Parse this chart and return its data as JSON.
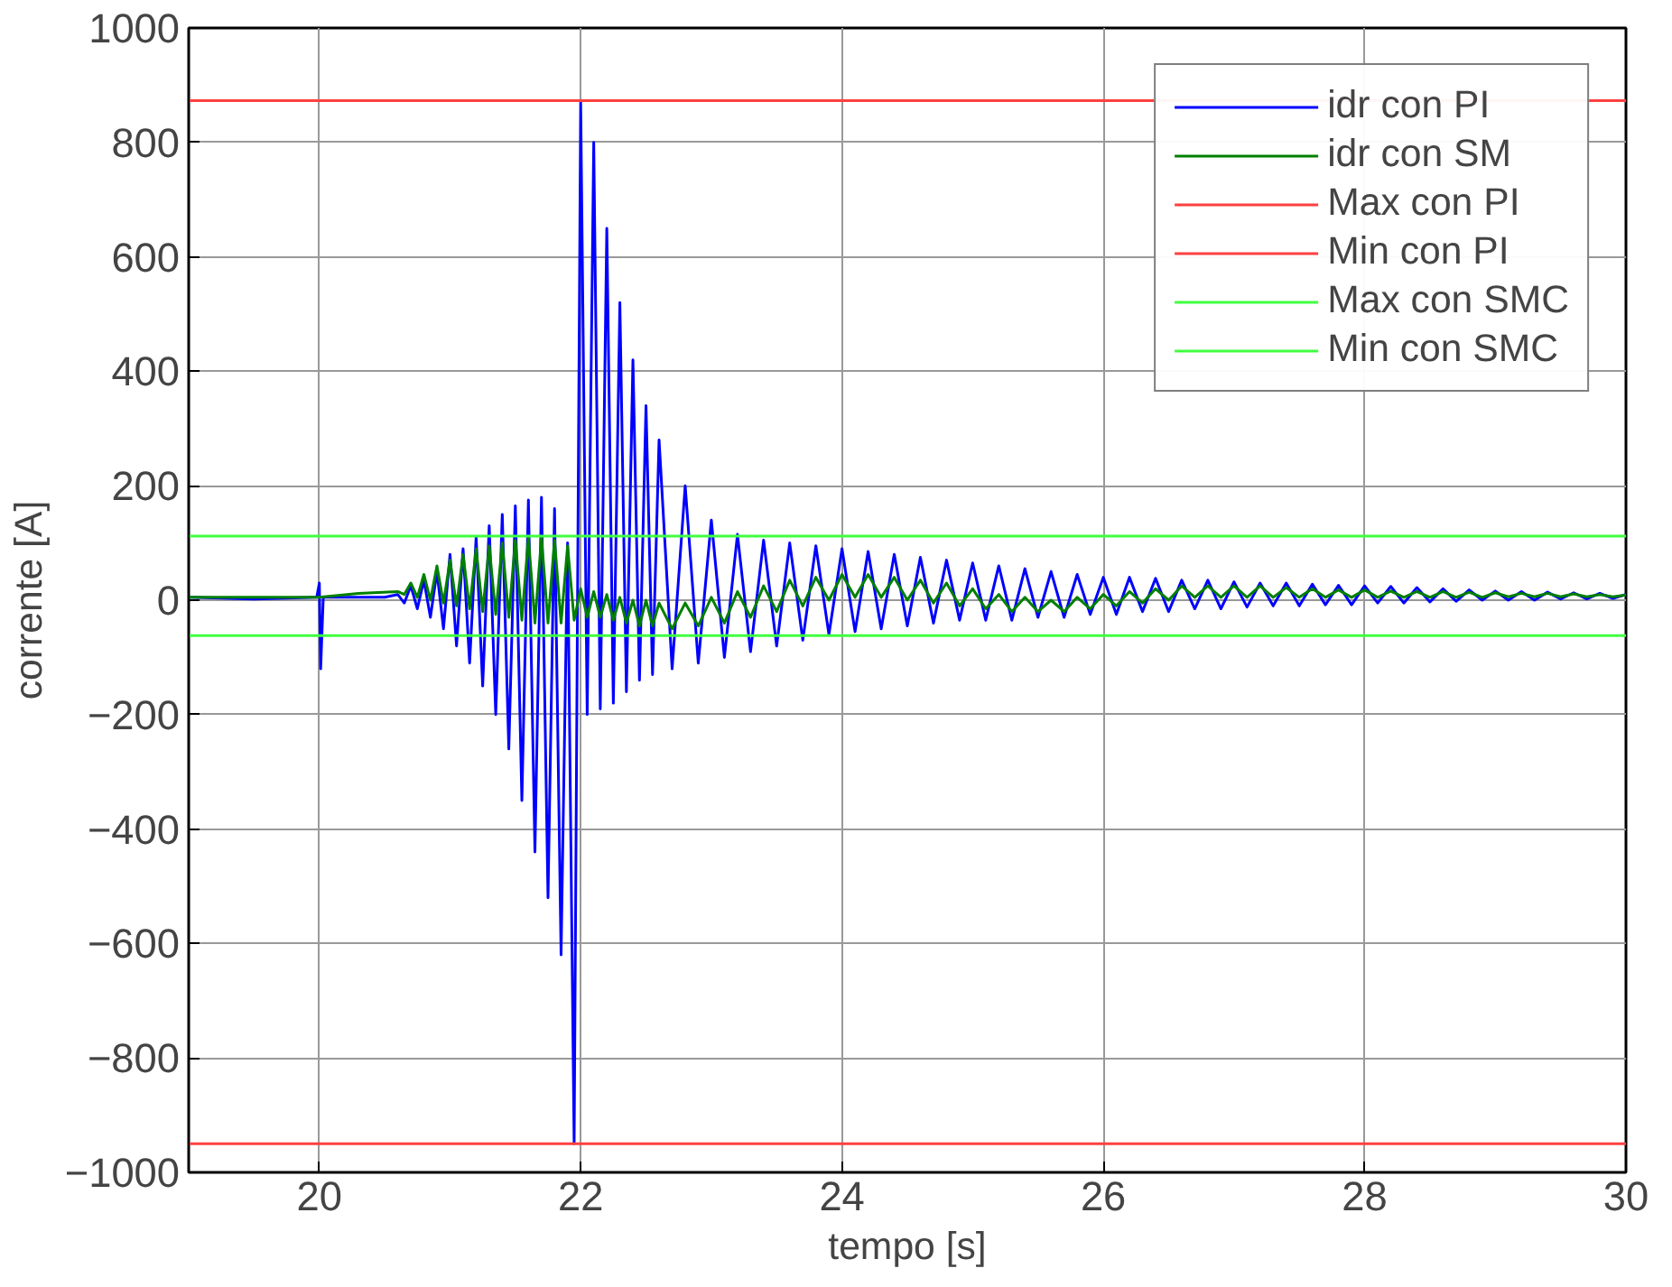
{
  "chart_data": {
    "type": "line",
    "xlabel": "tempo [s]",
    "ylabel": "corrente [A]",
    "xlim": [
      19,
      30
    ],
    "xticks": [
      20,
      22,
      24,
      26,
      28,
      30
    ],
    "ylim": [
      -1000,
      1000
    ],
    "yticks": [
      -1000,
      -800,
      -600,
      -400,
      -200,
      0,
      200,
      400,
      600,
      800,
      1000
    ],
    "grid": true,
    "legend": "top right",
    "marker": "none",
    "line_style": "solid",
    "series": [
      {
        "name": "idr con PI",
        "color": "#0000ff",
        "x": [
          19.0,
          19.5,
          19.98,
          20.0,
          20.01,
          20.03,
          20.5,
          20.6,
          20.65,
          20.7,
          20.75,
          20.8,
          20.85,
          20.9,
          20.95,
          21.0,
          21.05,
          21.1,
          21.15,
          21.2,
          21.25,
          21.3,
          21.35,
          21.4,
          21.45,
          21.5,
          21.55,
          21.6,
          21.65,
          21.7,
          21.75,
          21.8,
          21.85,
          21.9,
          21.95,
          22.0,
          22.05,
          22.1,
          22.15,
          22.2,
          22.25,
          22.3,
          22.35,
          22.4,
          22.45,
          22.5,
          22.55,
          22.6,
          22.7,
          22.8,
          22.9,
          23.0,
          23.1,
          23.2,
          23.3,
          23.4,
          23.5,
          23.6,
          23.7,
          23.8,
          23.9,
          24.0,
          24.1,
          24.2,
          24.3,
          24.4,
          24.5,
          24.6,
          24.7,
          24.8,
          24.9,
          25.0,
          25.1,
          25.2,
          25.3,
          25.4,
          25.5,
          25.6,
          25.7,
          25.8,
          25.9,
          26.0,
          26.1,
          26.2,
          26.3,
          26.4,
          26.5,
          26.6,
          26.7,
          26.8,
          26.9,
          27.0,
          27.1,
          27.2,
          27.3,
          27.4,
          27.5,
          27.6,
          27.7,
          27.8,
          27.9,
          28.0,
          28.1,
          28.2,
          28.3,
          28.4,
          28.5,
          28.6,
          28.7,
          28.8,
          28.9,
          29.0,
          29.1,
          29.2,
          29.3,
          29.4,
          29.5,
          29.6,
          29.7,
          29.8,
          29.9,
          30.0
        ],
        "values": [
          5,
          2,
          5,
          30,
          -120,
          5,
          5,
          10,
          -5,
          25,
          -15,
          35,
          -30,
          50,
          -50,
          80,
          -80,
          90,
          -110,
          110,
          -150,
          130,
          -200,
          150,
          -260,
          165,
          -350,
          175,
          -440,
          180,
          -520,
          160,
          -620,
          100,
          -950,
          870,
          -200,
          800,
          -190,
          650,
          -180,
          520,
          -160,
          420,
          -140,
          340,
          -130,
          280,
          -120,
          200,
          -110,
          140,
          -100,
          115,
          -90,
          105,
          -80,
          100,
          -70,
          95,
          -60,
          90,
          -55,
          85,
          -50,
          80,
          -45,
          75,
          -40,
          70,
          -35,
          65,
          -35,
          60,
          -35,
          55,
          -30,
          50,
          -30,
          45,
          -25,
          40,
          -25,
          40,
          -20,
          38,
          -20,
          35,
          -15,
          35,
          -15,
          32,
          -12,
          30,
          -10,
          30,
          -10,
          28,
          -8,
          26,
          -8,
          25,
          -5,
          24,
          -5,
          22,
          -3,
          20,
          -2,
          18,
          0,
          16,
          0,
          15,
          0,
          14,
          2,
          13,
          2,
          12,
          3,
          10
        ]
      },
      {
        "name": "idr con SM",
        "color": "#008000",
        "x": [
          19.0,
          20.0,
          20.3,
          20.6,
          20.65,
          20.7,
          20.75,
          20.8,
          20.85,
          20.9,
          20.95,
          21.0,
          21.05,
          21.1,
          21.15,
          21.2,
          21.25,
          21.3,
          21.35,
          21.4,
          21.45,
          21.5,
          21.55,
          21.6,
          21.65,
          21.7,
          21.75,
          21.8,
          21.85,
          21.9,
          21.95,
          22.0,
          22.05,
          22.1,
          22.15,
          22.2,
          22.25,
          22.3,
          22.35,
          22.4,
          22.45,
          22.5,
          22.55,
          22.6,
          22.7,
          22.8,
          22.9,
          23.0,
          23.1,
          23.2,
          23.3,
          23.4,
          23.5,
          23.6,
          23.7,
          23.8,
          23.9,
          24.0,
          24.1,
          24.2,
          24.3,
          24.4,
          24.5,
          24.6,
          24.7,
          24.8,
          24.9,
          25.0,
          25.1,
          25.2,
          25.3,
          25.4,
          25.5,
          25.6,
          25.7,
          25.8,
          25.9,
          26.0,
          26.1,
          26.2,
          26.3,
          26.4,
          26.5,
          26.6,
          26.7,
          26.8,
          26.9,
          27.0,
          27.1,
          27.2,
          27.3,
          27.4,
          27.5,
          27.6,
          27.7,
          27.8,
          27.9,
          28.0,
          28.1,
          28.2,
          28.3,
          28.4,
          28.5,
          28.6,
          28.7,
          28.8,
          28.9,
          29.0,
          29.1,
          29.2,
          29.3,
          29.4,
          29.5,
          29.6,
          29.7,
          29.8,
          29.9,
          30.0
        ],
        "values": [
          5,
          5,
          12,
          15,
          10,
          30,
          5,
          45,
          0,
          60,
          -5,
          70,
          -10,
          80,
          -15,
          90,
          -20,
          95,
          -25,
          100,
          -30,
          105,
          -35,
          110,
          -40,
          110,
          -40,
          105,
          -40,
          95,
          -35,
          20,
          -30,
          15,
          -30,
          10,
          -35,
          5,
          -40,
          0,
          -45,
          0,
          -45,
          -5,
          -50,
          -5,
          -45,
          5,
          -40,
          15,
          -30,
          25,
          -20,
          35,
          -10,
          40,
          0,
          45,
          5,
          45,
          5,
          40,
          0,
          35,
          -5,
          30,
          -10,
          20,
          -15,
          10,
          -20,
          5,
          -20,
          0,
          -20,
          5,
          -15,
          10,
          -10,
          15,
          -5,
          20,
          0,
          25,
          5,
          25,
          5,
          25,
          5,
          25,
          5,
          22,
          5,
          20,
          5,
          18,
          5,
          18,
          5,
          16,
          5,
          15,
          5,
          15,
          5,
          14,
          5,
          13,
          6,
          12,
          6,
          12,
          6,
          11,
          6,
          10,
          6,
          9
        ]
      },
      {
        "name": "Max con PI",
        "color": "#ff4040",
        "x": [
          19,
          30
        ],
        "values": [
          873,
          873
        ]
      },
      {
        "name": "Min con PI",
        "color": "#ff4040",
        "x": [
          19,
          30
        ],
        "values": [
          -950,
          -950
        ]
      },
      {
        "name": "Max con SMC",
        "color": "#40ff40",
        "x": [
          19,
          30
        ],
        "values": [
          112,
          112
        ]
      },
      {
        "name": "Min con SMC",
        "color": "#40ff40",
        "x": [
          19,
          30
        ],
        "values": [
          -62,
          -62
        ]
      }
    ]
  }
}
